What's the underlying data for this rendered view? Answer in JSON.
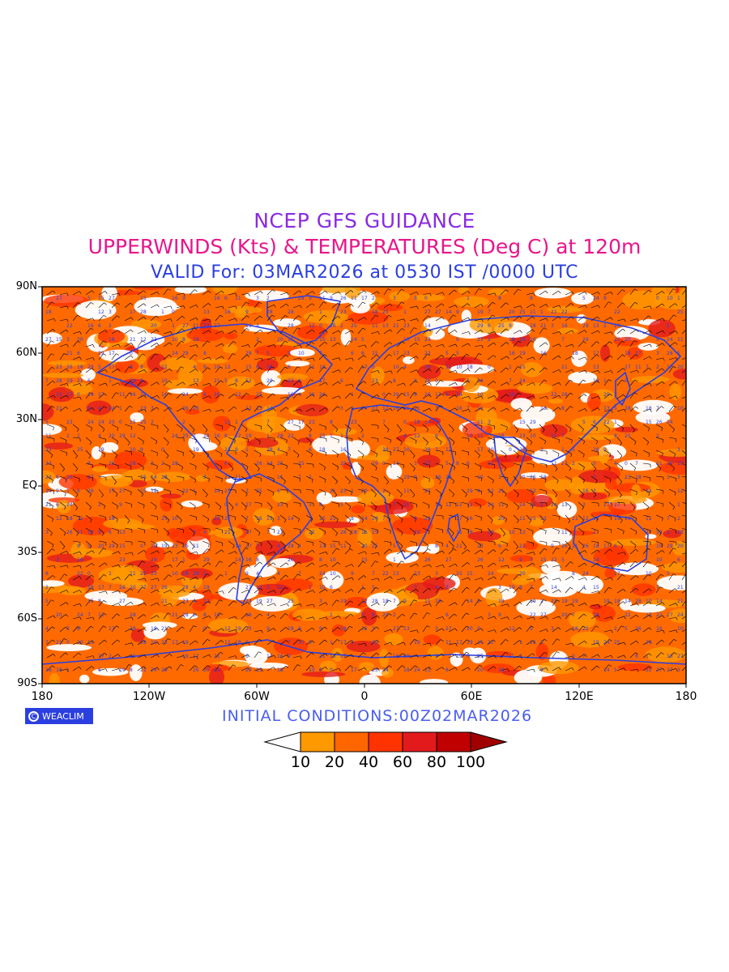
{
  "title": {
    "line1": "NCEP GFS GUIDANCE",
    "line2": "UPPERWINDS (Kts) & TEMPERATURES (Deg C) at 120m",
    "line3": "VALID For: 03MAR2026 at 0530 IST /0000 UTC"
  },
  "axes": {
    "lat_labels": [
      "90N",
      "60N",
      "30N",
      "EQ",
      "30S",
      "60S",
      "90S"
    ],
    "lon_labels": [
      "180",
      "120W",
      "60W",
      "0",
      "60E",
      "120E",
      "180"
    ]
  },
  "footer": {
    "logo_text": "WEACLIM",
    "initial_conditions": "INITIAL  CONDITIONS:00Z02MAR2026"
  },
  "legend": {
    "levels": [
      "10",
      "20",
      "40",
      "60",
      "80",
      "100"
    ],
    "colors": [
      "#ffffff",
      "#ff9900",
      "#ff6600",
      "#ff3300",
      "#e31a1c",
      "#c00000",
      "#a00000"
    ]
  },
  "colors": {
    "land_outline": "#2b3fe0",
    "temperature_numbers": "#2b3fe0",
    "wind_barbs": "#000000"
  }
}
